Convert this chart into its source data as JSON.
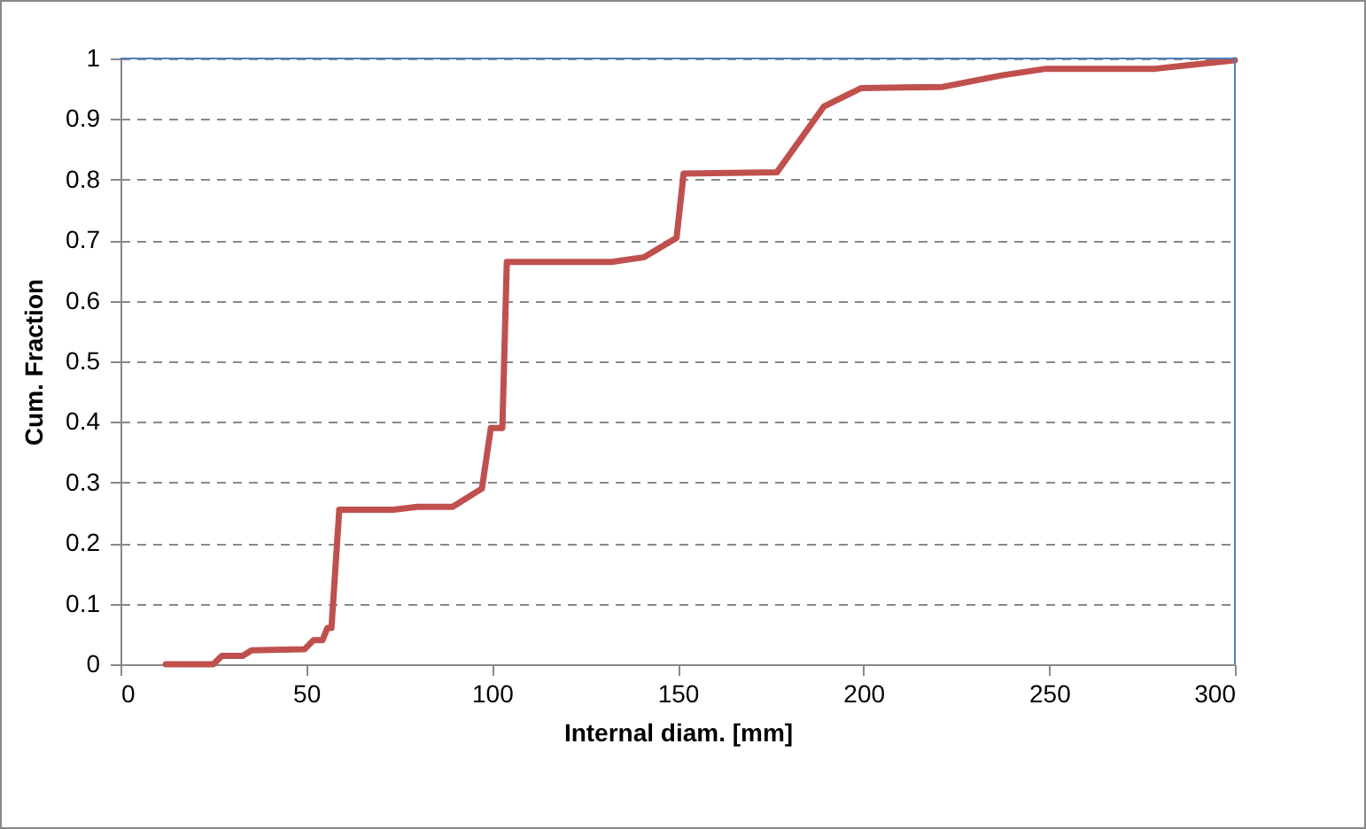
{
  "chart_data": {
    "type": "line",
    "xlabel": "Internal diam. [mm]",
    "ylabel": "Cum. Fraction",
    "x": [
      12.2,
      25,
      27.3,
      32.9,
      35.3,
      49.6,
      52,
      54.4,
      55.7,
      56.8,
      58.9,
      73.5,
      79.9,
      89.4,
      97.3,
      99.7,
      102.8,
      104,
      132.2,
      141,
      149.7,
      151.6,
      176.7,
      189.4,
      199.3,
      221.3,
      237.2,
      249.1,
      278.5,
      300
    ],
    "series": [
      {
        "color": "#c0504d",
        "values": [
          0,
          0,
          0.014,
          0.014,
          0.023,
          0.025,
          0.04,
          0.04,
          0.06,
          0.06,
          0.255,
          0.255,
          0.26,
          0.26,
          0.29,
          0.39,
          0.39,
          0.664,
          0.664,
          0.672,
          0.704,
          0.81,
          0.812,
          0.921,
          0.951,
          0.953,
          0.972,
          0.983,
          0.983,
          0.997
        ]
      }
    ],
    "xlim": [
      0,
      300
    ],
    "xticks": [
      0,
      50,
      100,
      150,
      200,
      250,
      300
    ],
    "ylim": [
      0,
      1
    ],
    "yticks": [
      0,
      0.1,
      0.2,
      0.3,
      0.4,
      0.5,
      0.6,
      0.7,
      0.8,
      0.9,
      1
    ],
    "grid": "y",
    "line_style": "solid",
    "marker": "none",
    "ref_lines": [
      {
        "axis": "y",
        "value": 1,
        "color": "#4f81bd"
      },
      {
        "axis": "x",
        "value": 300,
        "color": "#4f81bd"
      }
    ]
  }
}
